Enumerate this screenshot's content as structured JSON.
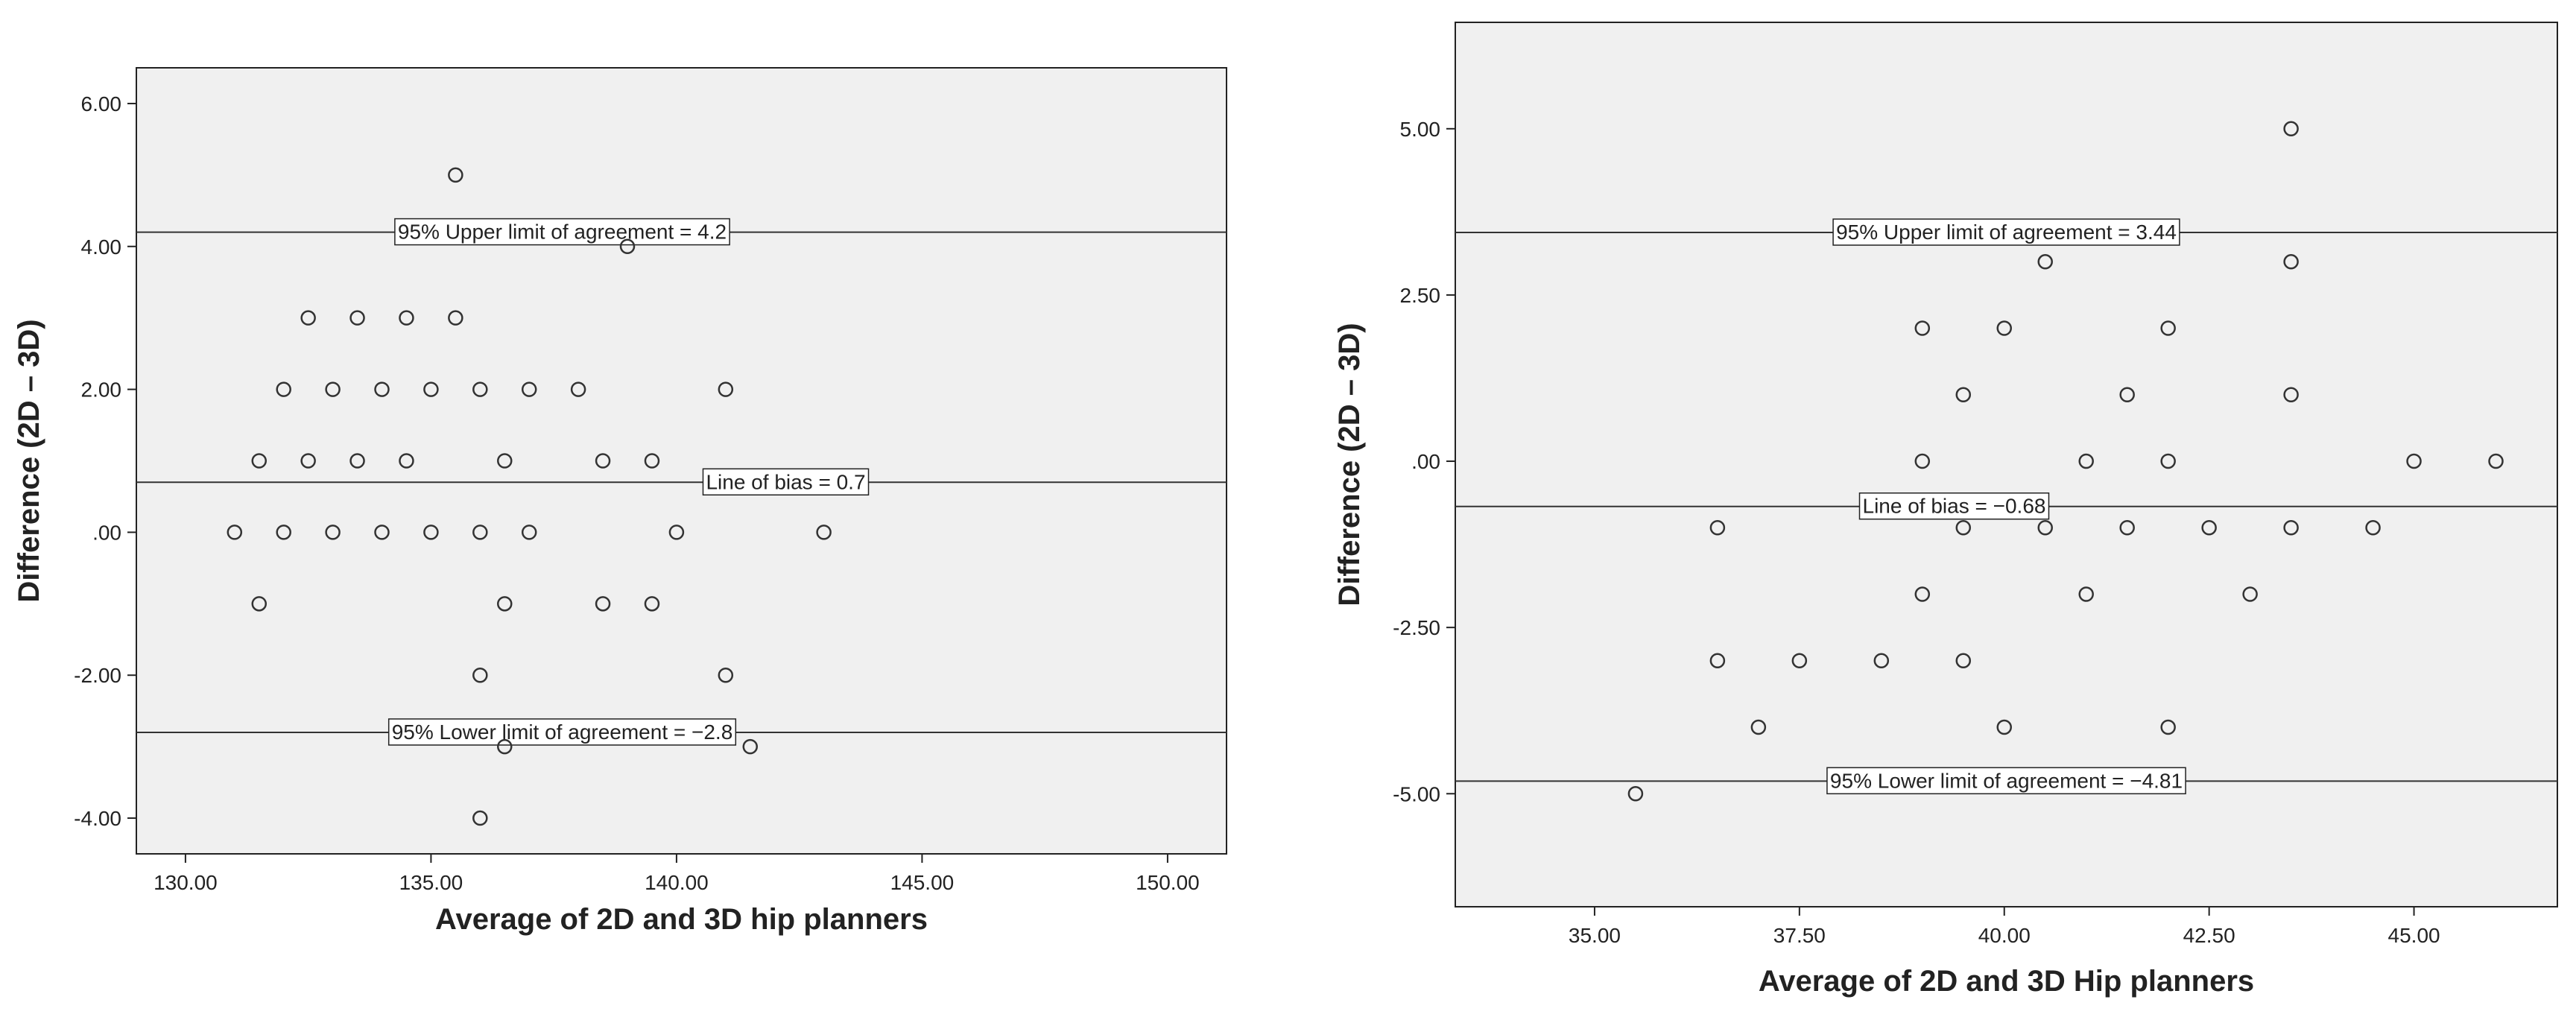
{
  "colors": {
    "plot_bg": "#f0f0f0",
    "axis": "#222222",
    "marker": "#333333",
    "reference_line": "#333333"
  },
  "chart_data": [
    {
      "type": "scatter",
      "xlabel": "Average of 2D and 3D hip planners",
      "ylabel": "Difference (2D – 3D)",
      "xlim": [
        129,
        151.2
      ],
      "ylim": [
        -4.5,
        6.5
      ],
      "xticks": [
        130,
        135,
        140,
        145,
        150
      ],
      "xtick_labels": [
        "130.00",
        "135.00",
        "140.00",
        "145.00",
        "150.00"
      ],
      "yticks": [
        -4,
        -2,
        0,
        2,
        4,
        6
      ],
      "ytick_labels": [
        "-4.00",
        "-2.00",
        ".00",
        "2.00",
        "4.00",
        "6.00"
      ],
      "grid": false,
      "marker": "open-circle",
      "reference_lines": [
        {
          "y": 4.2,
          "label": "95% Upper limit of agreement = 4.2"
        },
        {
          "y": 0.7,
          "label": "Line of bias = 0.7"
        },
        {
          "y": -2.8,
          "label": "95% Lower limit of agreement = −2.8"
        }
      ],
      "points": [
        [
          135.5,
          5
        ],
        [
          139,
          4
        ],
        [
          132.5,
          3
        ],
        [
          133.5,
          3
        ],
        [
          134.5,
          3
        ],
        [
          135.5,
          3
        ],
        [
          132,
          2
        ],
        [
          133,
          2
        ],
        [
          134,
          2
        ],
        [
          135,
          2
        ],
        [
          136,
          2
        ],
        [
          137,
          2
        ],
        [
          138,
          2
        ],
        [
          141,
          2
        ],
        [
          131.5,
          1
        ],
        [
          132.5,
          1
        ],
        [
          133.5,
          1
        ],
        [
          134.5,
          1
        ],
        [
          136.5,
          1
        ],
        [
          138.5,
          1
        ],
        [
          139.5,
          1
        ],
        [
          131,
          0
        ],
        [
          132,
          0
        ],
        [
          133,
          0
        ],
        [
          134,
          0
        ],
        [
          135,
          0
        ],
        [
          136,
          0
        ],
        [
          137,
          0
        ],
        [
          140,
          0
        ],
        [
          143,
          0
        ],
        [
          131.5,
          -1
        ],
        [
          136.5,
          -1
        ],
        [
          138.5,
          -1
        ],
        [
          139.5,
          -1
        ],
        [
          136,
          -2
        ],
        [
          141,
          -2
        ],
        [
          136.5,
          -3
        ],
        [
          141.5,
          -3
        ],
        [
          136,
          -4
        ]
      ]
    },
    {
      "type": "scatter",
      "xlabel": "Average of 2D and 3D Hip planners",
      "ylabel": "Difference (2D – 3D)",
      "xlim": [
        33.3,
        46.75
      ],
      "ylim": [
        -6.7,
        6.6
      ],
      "xticks": [
        35,
        37.5,
        40,
        42.5,
        45
      ],
      "xtick_labels": [
        "35.00",
        "37.50",
        "40.00",
        "42.50",
        "45.00"
      ],
      "yticks": [
        -5,
        -2.5,
        0,
        2.5,
        5
      ],
      "ytick_labels": [
        "-5.00",
        "-2.50",
        ".00",
        "2.50",
        "5.00"
      ],
      "grid": false,
      "marker": "open-circle",
      "reference_lines": [
        {
          "y": 3.44,
          "label": "95% Upper limit of agreement = 3.44"
        },
        {
          "y": -0.68,
          "label": "Line of bias = −0.68"
        },
        {
          "y": -4.81,
          "label": "95% Lower limit of agreement = −4.81"
        }
      ],
      "points": [
        [
          43.5,
          5
        ],
        [
          40.5,
          3
        ],
        [
          43.5,
          3
        ],
        [
          39,
          2
        ],
        [
          40,
          2
        ],
        [
          42,
          2
        ],
        [
          39.5,
          1
        ],
        [
          41.5,
          1
        ],
        [
          43.5,
          1
        ],
        [
          39,
          0
        ],
        [
          41,
          0
        ],
        [
          42,
          0
        ],
        [
          45,
          0
        ],
        [
          46,
          0
        ],
        [
          36.5,
          -1
        ],
        [
          39.5,
          -1
        ],
        [
          40.5,
          -1
        ],
        [
          41.5,
          -1
        ],
        [
          42.5,
          -1
        ],
        [
          43.5,
          -1
        ],
        [
          44.5,
          -1
        ],
        [
          39,
          -2
        ],
        [
          41,
          -2
        ],
        [
          43,
          -2
        ],
        [
          36.5,
          -3
        ],
        [
          37.5,
          -3
        ],
        [
          38.5,
          -3
        ],
        [
          39.5,
          -3
        ],
        [
          37,
          -4
        ],
        [
          40,
          -4
        ],
        [
          42,
          -4
        ],
        [
          35.5,
          -5
        ]
      ]
    }
  ]
}
